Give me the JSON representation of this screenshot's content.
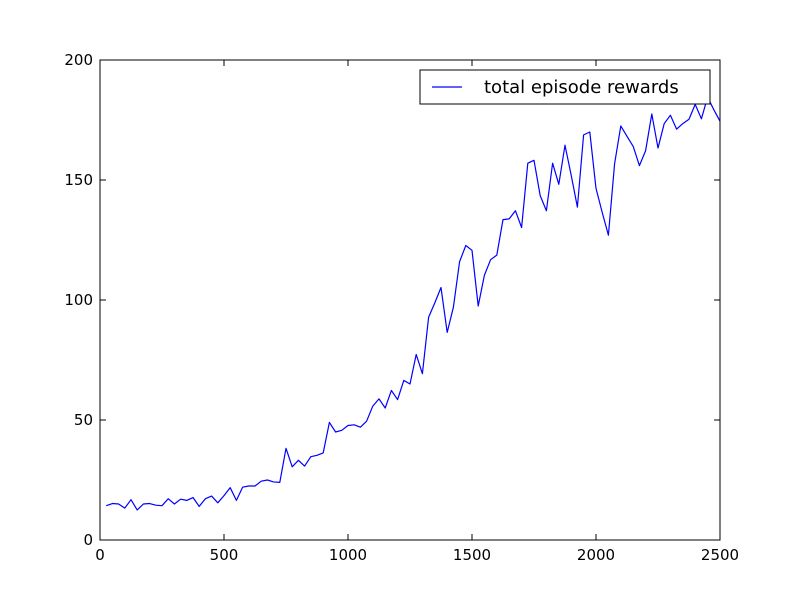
{
  "chart_data": {
    "type": "line",
    "xlim": [
      0,
      2500
    ],
    "ylim": [
      0,
      200
    ],
    "xticks": [
      0,
      500,
      1000,
      1500,
      2000,
      2500
    ],
    "yticks": [
      0,
      50,
      100,
      150,
      200
    ],
    "grid": false,
    "legend_position": "top-right",
    "series": [
      {
        "name": "total episode rewards",
        "color": "#0000ff",
        "x": [
          25,
          50,
          75,
          100,
          125,
          150,
          175,
          200,
          225,
          250,
          275,
          300,
          325,
          350,
          375,
          400,
          425,
          450,
          475,
          500,
          525,
          550,
          575,
          600,
          625,
          650,
          675,
          700,
          725,
          750,
          775,
          800,
          825,
          850,
          875,
          900,
          925,
          950,
          975,
          1000,
          1025,
          1050,
          1075,
          1100,
          1125,
          1150,
          1175,
          1200,
          1225,
          1250,
          1275,
          1300,
          1325,
          1350,
          1375,
          1400,
          1425,
          1450,
          1475,
          1500,
          1525,
          1550,
          1575,
          1600,
          1625,
          1650,
          1675,
          1700,
          1725,
          1750,
          1775,
          1800,
          1825,
          1850,
          1875,
          1900,
          1925,
          1950,
          1975,
          2000,
          2025,
          2050,
          2075,
          2100,
          2125,
          2150,
          2175,
          2200,
          2225,
          2250,
          2275,
          2300,
          2325,
          2350,
          2375,
          2400,
          2425,
          2450,
          2475,
          2500
        ],
        "y": [
          14.3,
          15.2,
          15.0,
          13.3,
          16.8,
          12.5,
          15.0,
          15.2,
          14.5,
          14.3,
          17.2,
          15.0,
          17.0,
          16.5,
          17.7,
          14.0,
          17.2,
          18.3,
          15.5,
          18.5,
          21.8,
          16.5,
          22.0,
          22.5,
          22.5,
          24.5,
          25.0,
          24.2,
          24.0,
          38.2,
          30.5,
          33.2,
          30.8,
          34.7,
          35.3,
          36.3,
          49.0,
          45.0,
          45.7,
          47.7,
          48.0,
          47.0,
          49.5,
          55.8,
          58.8,
          55.0,
          62.3,
          58.5,
          66.5,
          65.0,
          77.3,
          69.3,
          92.8,
          98.8,
          105.2,
          86.5,
          97.0,
          116.0,
          122.7,
          120.7,
          97.5,
          110.3,
          116.8,
          118.7,
          133.5,
          133.8,
          137.2,
          130.2,
          157.0,
          158.2,
          143.5,
          137.2,
          157.0,
          148.2,
          164.5,
          152.0,
          138.7,
          168.8,
          170.0,
          146.5,
          136.5,
          127.0,
          156.8,
          172.5,
          168.2,
          164.0,
          156.0,
          162.2,
          177.5,
          163.3,
          173.5,
          177.0,
          171.2,
          173.5,
          175.3,
          181.5,
          175.5,
          184.5,
          179.3,
          174.5
        ]
      }
    ]
  }
}
